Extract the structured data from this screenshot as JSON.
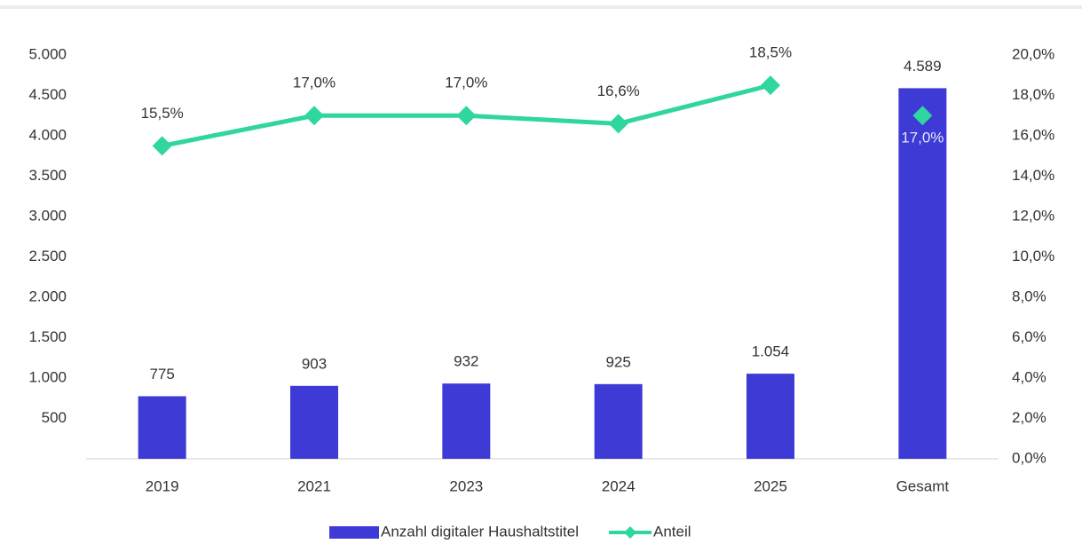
{
  "chart_data": {
    "type": "bar_line",
    "categories": [
      "2019",
      "2021",
      "2023",
      "2024",
      "2025",
      "Gesamt"
    ],
    "series": [
      {
        "name": "Anzahl digitaler Haushaltstitel",
        "type": "bar",
        "color": "#3d3ad6",
        "values": [
          775,
          903,
          932,
          925,
          1054,
          4589
        ],
        "value_labels": [
          "775",
          "903",
          "932",
          "925",
          "1.054",
          "4.589"
        ]
      },
      {
        "name": "Anteil",
        "type": "line",
        "axis": "y2",
        "color": "#2fd6a0",
        "marker": "diamond",
        "values": [
          15.5,
          17.0,
          17.0,
          16.6,
          18.5,
          17.0
        ],
        "value_labels": [
          "15,5%",
          "17,0%",
          "17,0%",
          "16,6%",
          "18,5%",
          "17,0%"
        ],
        "gap_before_index": 5
      }
    ],
    "ylim": [
      0,
      5000
    ],
    "yticks": [
      500,
      {
        "value": 1000,
        "label": "1.000"
      },
      {
        "value": 1500,
        "label": "1.500"
      },
      {
        "value": 2000,
        "label": "2.000"
      },
      {
        "value": 2500,
        "label": "2.500"
      },
      {
        "value": 3000,
        "label": "3.000"
      },
      {
        "value": 3500,
        "label": "3.500"
      },
      {
        "value": 4000,
        "label": "4.000"
      },
      {
        "value": 4500,
        "label": "4.500"
      },
      {
        "value": 5000,
        "label": "5.000"
      }
    ],
    "y2lim": [
      0,
      20
    ],
    "y2ticks": [
      {
        "value": 0,
        "label": "0,0%"
      },
      {
        "value": 2,
        "label": "2,0%"
      },
      {
        "value": 4,
        "label": "4,0%"
      },
      {
        "value": 6,
        "label": "6,0%"
      },
      {
        "value": 8,
        "label": "8,0%"
      },
      {
        "value": 10,
        "label": "10,0%"
      },
      {
        "value": 12,
        "label": "12,0%"
      },
      {
        "value": 14,
        "label": "14,0%"
      },
      {
        "value": 16,
        "label": "16,0%"
      },
      {
        "value": 18,
        "label": "18,0%"
      },
      {
        "value": 20,
        "label": "20,0%"
      }
    ],
    "grid": false,
    "legend": "bottom"
  }
}
